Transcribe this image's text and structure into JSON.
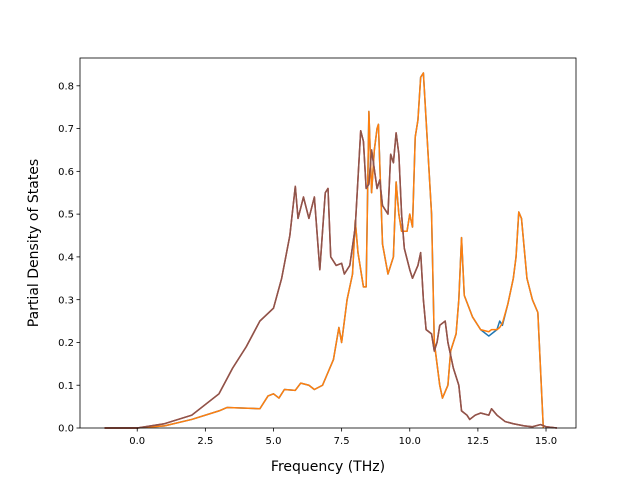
{
  "chart_data": {
    "type": "line",
    "xlabel": "Frequency (THz)",
    "ylabel": "Partial Density of States",
    "xlim": [
      -2.1,
      16.1
    ],
    "ylim": [
      0.0,
      0.865
    ],
    "xticks": [
      "0.0",
      "2.5",
      "5.0",
      "7.5",
      "10.0",
      "12.5",
      "15.0"
    ],
    "yticks": [
      "0.0",
      "0.1",
      "0.2",
      "0.3",
      "0.4",
      "0.5",
      "0.6",
      "0.7",
      "0.8"
    ],
    "grid": false,
    "legend": "none",
    "series": [
      {
        "color": "#1f77b4",
        "points": [
          [
            -1.2,
            0
          ],
          [
            0.0,
            0.0
          ],
          [
            1.0,
            0.005
          ],
          [
            2.0,
            0.02
          ],
          [
            3.0,
            0.04
          ],
          [
            3.3,
            0.048
          ],
          [
            4.5,
            0.045
          ],
          [
            4.8,
            0.075
          ],
          [
            5.0,
            0.08
          ],
          [
            5.2,
            0.07
          ],
          [
            5.4,
            0.09
          ],
          [
            5.8,
            0.088
          ],
          [
            6.0,
            0.105
          ],
          [
            6.3,
            0.1
          ],
          [
            6.5,
            0.09
          ],
          [
            6.8,
            0.1
          ],
          [
            7.0,
            0.13
          ],
          [
            7.2,
            0.16
          ],
          [
            7.4,
            0.235
          ],
          [
            7.5,
            0.2
          ],
          [
            7.7,
            0.3
          ],
          [
            7.9,
            0.36
          ],
          [
            8.0,
            0.485
          ],
          [
            8.1,
            0.41
          ],
          [
            8.3,
            0.33
          ],
          [
            8.4,
            0.33
          ],
          [
            8.5,
            0.74
          ],
          [
            8.6,
            0.55
          ],
          [
            8.7,
            0.65
          ],
          [
            8.8,
            0.7
          ],
          [
            8.85,
            0.71
          ],
          [
            9.0,
            0.43
          ],
          [
            9.2,
            0.36
          ],
          [
            9.4,
            0.4
          ],
          [
            9.5,
            0.575
          ],
          [
            9.6,
            0.5
          ],
          [
            9.7,
            0.46
          ],
          [
            9.9,
            0.46
          ],
          [
            10.0,
            0.5
          ],
          [
            10.1,
            0.47
          ],
          [
            10.2,
            0.68
          ],
          [
            10.3,
            0.72
          ],
          [
            10.4,
            0.82
          ],
          [
            10.5,
            0.83
          ],
          [
            10.8,
            0.5
          ],
          [
            10.9,
            0.2
          ],
          [
            11.1,
            0.1
          ],
          [
            11.2,
            0.07
          ],
          [
            11.4,
            0.1
          ],
          [
            11.5,
            0.18
          ],
          [
            11.7,
            0.22
          ],
          [
            11.8,
            0.3
          ],
          [
            11.9,
            0.445
          ],
          [
            12.0,
            0.31
          ],
          [
            12.3,
            0.26
          ],
          [
            12.6,
            0.23
          ],
          [
            12.9,
            0.215
          ],
          [
            13.0,
            0.22
          ],
          [
            13.2,
            0.23
          ],
          [
            13.3,
            0.25
          ],
          [
            13.4,
            0.24
          ],
          [
            13.6,
            0.29
          ],
          [
            13.8,
            0.35
          ],
          [
            13.9,
            0.4
          ],
          [
            14.0,
            0.505
          ],
          [
            14.1,
            0.49
          ],
          [
            14.3,
            0.35
          ],
          [
            14.5,
            0.3
          ],
          [
            14.7,
            0.27
          ],
          [
            14.9,
            0.0
          ]
        ]
      },
      {
        "color": "#ff7f0e",
        "points": [
          [
            -1.2,
            0
          ],
          [
            0.0,
            0.0
          ],
          [
            1.0,
            0.005
          ],
          [
            2.0,
            0.02
          ],
          [
            3.0,
            0.04
          ],
          [
            3.3,
            0.048
          ],
          [
            4.5,
            0.045
          ],
          [
            4.8,
            0.075
          ],
          [
            5.0,
            0.08
          ],
          [
            5.2,
            0.07
          ],
          [
            5.4,
            0.09
          ],
          [
            5.8,
            0.088
          ],
          [
            6.0,
            0.105
          ],
          [
            6.3,
            0.1
          ],
          [
            6.5,
            0.09
          ],
          [
            6.8,
            0.1
          ],
          [
            7.0,
            0.13
          ],
          [
            7.2,
            0.16
          ],
          [
            7.4,
            0.235
          ],
          [
            7.5,
            0.2
          ],
          [
            7.7,
            0.3
          ],
          [
            7.9,
            0.36
          ],
          [
            8.0,
            0.485
          ],
          [
            8.1,
            0.41
          ],
          [
            8.3,
            0.33
          ],
          [
            8.4,
            0.33
          ],
          [
            8.5,
            0.74
          ],
          [
            8.6,
            0.55
          ],
          [
            8.7,
            0.65
          ],
          [
            8.8,
            0.7
          ],
          [
            8.85,
            0.71
          ],
          [
            9.0,
            0.43
          ],
          [
            9.2,
            0.36
          ],
          [
            9.4,
            0.4
          ],
          [
            9.5,
            0.575
          ],
          [
            9.6,
            0.5
          ],
          [
            9.7,
            0.46
          ],
          [
            9.9,
            0.46
          ],
          [
            10.0,
            0.5
          ],
          [
            10.1,
            0.47
          ],
          [
            10.2,
            0.68
          ],
          [
            10.3,
            0.72
          ],
          [
            10.4,
            0.82
          ],
          [
            10.5,
            0.83
          ],
          [
            10.8,
            0.5
          ],
          [
            10.9,
            0.2
          ],
          [
            11.1,
            0.1
          ],
          [
            11.2,
            0.07
          ],
          [
            11.4,
            0.1
          ],
          [
            11.5,
            0.18
          ],
          [
            11.7,
            0.22
          ],
          [
            11.8,
            0.3
          ],
          [
            11.9,
            0.445
          ],
          [
            12.0,
            0.31
          ],
          [
            12.3,
            0.26
          ],
          [
            12.6,
            0.23
          ],
          [
            12.9,
            0.225
          ],
          [
            13.0,
            0.23
          ],
          [
            13.2,
            0.23
          ],
          [
            13.3,
            0.235
          ],
          [
            13.4,
            0.245
          ],
          [
            13.6,
            0.29
          ],
          [
            13.8,
            0.35
          ],
          [
            13.9,
            0.4
          ],
          [
            14.0,
            0.505
          ],
          [
            14.1,
            0.49
          ],
          [
            14.3,
            0.35
          ],
          [
            14.5,
            0.3
          ],
          [
            14.7,
            0.27
          ],
          [
            14.9,
            0.0
          ]
        ]
      },
      {
        "color": "#d62728",
        "points": [
          [
            -1.2,
            0
          ],
          [
            0.0,
            0.0
          ],
          [
            1.0,
            0.01
          ],
          [
            2.0,
            0.03
          ],
          [
            3.0,
            0.08
          ],
          [
            3.5,
            0.14
          ],
          [
            4.0,
            0.19
          ],
          [
            4.5,
            0.25
          ],
          [
            5.0,
            0.28
          ],
          [
            5.3,
            0.35
          ],
          [
            5.6,
            0.45
          ],
          [
            5.8,
            0.565
          ],
          [
            5.9,
            0.49
          ],
          [
            6.1,
            0.54
          ],
          [
            6.3,
            0.49
          ],
          [
            6.5,
            0.54
          ],
          [
            6.7,
            0.37
          ],
          [
            6.9,
            0.55
          ],
          [
            7.0,
            0.56
          ],
          [
            7.1,
            0.4
          ],
          [
            7.3,
            0.38
          ],
          [
            7.5,
            0.385
          ],
          [
            7.6,
            0.36
          ],
          [
            7.8,
            0.38
          ],
          [
            8.0,
            0.47
          ],
          [
            8.2,
            0.695
          ],
          [
            8.3,
            0.67
          ],
          [
            8.4,
            0.56
          ],
          [
            8.5,
            0.57
          ],
          [
            8.6,
            0.65
          ],
          [
            8.8,
            0.56
          ],
          [
            8.9,
            0.58
          ],
          [
            9.0,
            0.52
          ],
          [
            9.2,
            0.5
          ],
          [
            9.3,
            0.64
          ],
          [
            9.4,
            0.62
          ],
          [
            9.5,
            0.69
          ],
          [
            9.6,
            0.64
          ],
          [
            9.7,
            0.5
          ],
          [
            9.8,
            0.42
          ],
          [
            10.0,
            0.37
          ],
          [
            10.1,
            0.35
          ],
          [
            10.3,
            0.38
          ],
          [
            10.4,
            0.41
          ],
          [
            10.5,
            0.3
          ],
          [
            10.6,
            0.23
          ],
          [
            10.8,
            0.22
          ],
          [
            10.9,
            0.18
          ],
          [
            11.0,
            0.2
          ],
          [
            11.1,
            0.24
          ],
          [
            11.3,
            0.25
          ],
          [
            11.4,
            0.2
          ],
          [
            11.6,
            0.14
          ],
          [
            11.8,
            0.1
          ],
          [
            11.9,
            0.04
          ],
          [
            12.1,
            0.03
          ],
          [
            12.2,
            0.02
          ],
          [
            12.4,
            0.03
          ],
          [
            12.6,
            0.035
          ],
          [
            12.9,
            0.03
          ],
          [
            13.0,
            0.045
          ],
          [
            13.2,
            0.03
          ],
          [
            13.5,
            0.015
          ],
          [
            13.8,
            0.01
          ],
          [
            14.2,
            0.005
          ],
          [
            14.5,
            0.003
          ],
          [
            14.8,
            0.008
          ],
          [
            15.0,
            0.003
          ],
          [
            15.4,
            0.0
          ]
        ]
      },
      {
        "color": "#8c564b",
        "points": [
          [
            -1.2,
            0
          ],
          [
            0.0,
            0.0
          ],
          [
            1.0,
            0.01
          ],
          [
            2.0,
            0.03
          ],
          [
            3.0,
            0.08
          ],
          [
            3.5,
            0.14
          ],
          [
            4.0,
            0.19
          ],
          [
            4.5,
            0.25
          ],
          [
            5.0,
            0.28
          ],
          [
            5.3,
            0.35
          ],
          [
            5.6,
            0.45
          ],
          [
            5.8,
            0.565
          ],
          [
            5.9,
            0.49
          ],
          [
            6.1,
            0.54
          ],
          [
            6.3,
            0.49
          ],
          [
            6.5,
            0.54
          ],
          [
            6.7,
            0.37
          ],
          [
            6.9,
            0.55
          ],
          [
            7.0,
            0.56
          ],
          [
            7.1,
            0.4
          ],
          [
            7.3,
            0.38
          ],
          [
            7.5,
            0.385
          ],
          [
            7.6,
            0.36
          ],
          [
            7.8,
            0.38
          ],
          [
            8.0,
            0.47
          ],
          [
            8.2,
            0.695
          ],
          [
            8.3,
            0.67
          ],
          [
            8.4,
            0.56
          ],
          [
            8.5,
            0.57
          ],
          [
            8.6,
            0.65
          ],
          [
            8.8,
            0.56
          ],
          [
            8.9,
            0.58
          ],
          [
            9.0,
            0.52
          ],
          [
            9.2,
            0.5
          ],
          [
            9.3,
            0.64
          ],
          [
            9.4,
            0.62
          ],
          [
            9.5,
            0.69
          ],
          [
            9.6,
            0.64
          ],
          [
            9.7,
            0.5
          ],
          [
            9.8,
            0.42
          ],
          [
            10.0,
            0.37
          ],
          [
            10.1,
            0.35
          ],
          [
            10.3,
            0.38
          ],
          [
            10.4,
            0.41
          ],
          [
            10.5,
            0.3
          ],
          [
            10.6,
            0.23
          ],
          [
            10.8,
            0.22
          ],
          [
            10.9,
            0.18
          ],
          [
            11.0,
            0.2
          ],
          [
            11.1,
            0.24
          ],
          [
            11.3,
            0.25
          ],
          [
            11.4,
            0.2
          ],
          [
            11.6,
            0.14
          ],
          [
            11.8,
            0.1
          ],
          [
            11.9,
            0.04
          ],
          [
            12.1,
            0.03
          ],
          [
            12.2,
            0.02
          ],
          [
            12.4,
            0.03
          ],
          [
            12.6,
            0.035
          ],
          [
            12.9,
            0.03
          ],
          [
            13.0,
            0.045
          ],
          [
            13.2,
            0.03
          ],
          [
            13.5,
            0.015
          ],
          [
            13.8,
            0.01
          ],
          [
            14.2,
            0.005
          ],
          [
            14.5,
            0.003
          ],
          [
            14.8,
            0.008
          ],
          [
            15.0,
            0.003
          ],
          [
            15.4,
            0.0
          ]
        ]
      }
    ]
  }
}
